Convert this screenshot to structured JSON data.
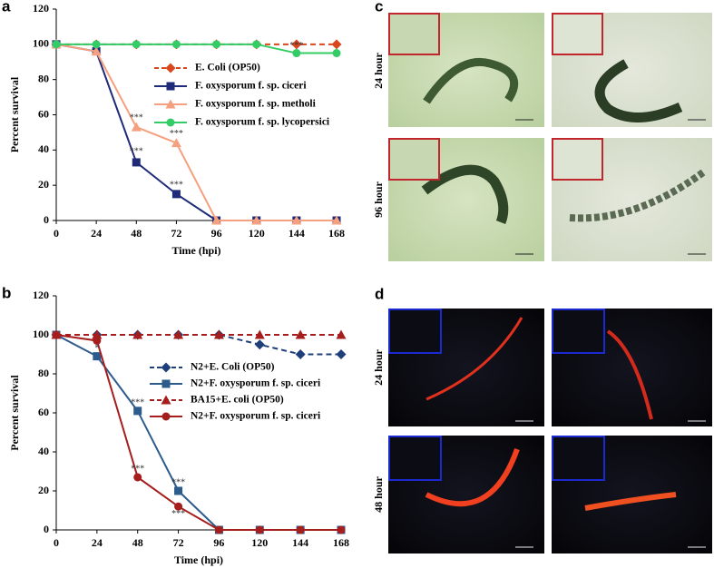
{
  "chart_data": [
    {
      "type": "line",
      "panel_label": "a",
      "ylabel": "Percent survival",
      "xlabel": "Time (hpi)",
      "x": [
        0,
        24,
        48,
        72,
        96,
        120,
        144,
        168
      ],
      "xlim": [
        0,
        168
      ],
      "xticks": [
        0,
        24,
        48,
        72,
        96,
        120,
        144,
        168
      ],
      "ylim": [
        0,
        120
      ],
      "yticks": [
        0,
        20,
        40,
        60,
        80,
        100,
        120
      ],
      "series": [
        {
          "name": "E. Coli (OP50)",
          "color": "#d9471f",
          "marker": "diamond",
          "dashed": true,
          "values": [
            100,
            100,
            100,
            100,
            100,
            100,
            100,
            100
          ]
        },
        {
          "name": "F. oxysporum f. sp. ciceri",
          "color": "#1f2a78",
          "marker": "square",
          "dashed": false,
          "values": [
            100,
            96,
            33,
            15,
            0,
            0,
            0,
            0
          ]
        },
        {
          "name": "F. oxysporum f. sp. metholi",
          "color": "#f5a07e",
          "marker": "triangle",
          "dashed": false,
          "values": [
            100,
            96,
            53,
            44,
            0,
            0,
            0,
            0
          ]
        },
        {
          "name": "F. oxysporum f. sp. lycopersici",
          "color": "#33cc66",
          "marker": "circle",
          "dashed": false,
          "values": [
            100,
            100,
            100,
            100,
            100,
            100,
            95,
            95
          ]
        }
      ],
      "annotations": [
        {
          "text": "***",
          "x": 48,
          "y": 58
        },
        {
          "text": "***",
          "x": 72,
          "y": 49
        },
        {
          "text": "***",
          "x": 48,
          "y": 39
        },
        {
          "text": "***",
          "x": 72,
          "y": 20
        },
        {
          "text": "***",
          "x": 144,
          "y": 99
        }
      ]
    },
    {
      "type": "line",
      "panel_label": "b",
      "ylabel": "Percent survival",
      "xlabel": "Time (hpi)",
      "x": [
        0,
        24,
        48,
        72,
        96,
        120,
        144,
        168
      ],
      "xlim": [
        0,
        168
      ],
      "xticks": [
        0,
        24,
        48,
        72,
        96,
        120,
        144,
        168
      ],
      "ylim": [
        0,
        120
      ],
      "yticks": [
        0,
        20,
        40,
        60,
        80,
        100,
        120
      ],
      "series": [
        {
          "name": "N2+E. Coli (OP50)",
          "color": "#1f3f7a",
          "marker": "diamond",
          "dashed": true,
          "values": [
            100,
            100,
            100,
            100,
            100,
            95,
            90,
            90
          ]
        },
        {
          "name": "N2+F. oxysporum f. sp. ciceri",
          "color": "#2c5b8c",
          "marker": "square",
          "dashed": false,
          "values": [
            100,
            89,
            61,
            20,
            0,
            0,
            0,
            0
          ]
        },
        {
          "name": "BA15+E. coli (OP50)",
          "color": "#a51d1d",
          "marker": "triangle",
          "dashed": true,
          "values": [
            100,
            100,
            100,
            100,
            100,
            100,
            100,
            100
          ]
        },
        {
          "name": "N2+F. oxysporum f. sp. ciceri",
          "color": "#a51d1d",
          "marker": "circle",
          "dashed": false,
          "values": [
            100,
            97,
            27,
            12,
            0,
            0,
            0,
            0
          ]
        }
      ],
      "annotations": [
        {
          "text": "*",
          "x": 24,
          "y": 93
        },
        {
          "text": "***",
          "x": 48,
          "y": 65
        },
        {
          "text": "***",
          "x": 48,
          "y": 31
        },
        {
          "text": "***",
          "x": 72,
          "y": 24
        },
        {
          "text": "***",
          "x": 72,
          "y": 8
        }
      ]
    }
  ],
  "images": [
    {
      "panel_label": "c",
      "rows": [
        "24 hour",
        "96 hour"
      ]
    },
    {
      "panel_label": "d",
      "rows": [
        "24 hour",
        "48 hour"
      ]
    }
  ]
}
